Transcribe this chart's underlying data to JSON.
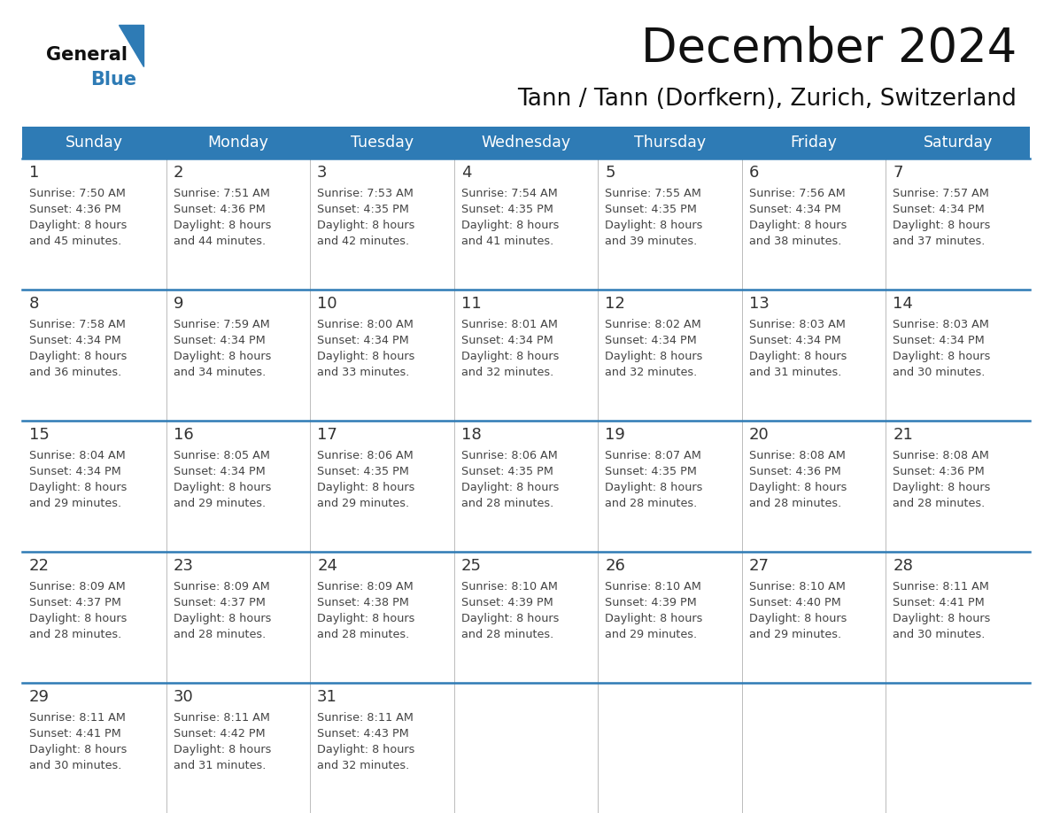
{
  "title": "December 2024",
  "subtitle": "Tann / Tann (Dorfkern), Zurich, Switzerland",
  "header_color": "#2E7BB5",
  "header_text_color": "#FFFFFF",
  "days_of_week": [
    "Sunday",
    "Monday",
    "Tuesday",
    "Wednesday",
    "Thursday",
    "Friday",
    "Saturday"
  ],
  "cell_bg_color": "#FFFFFF",
  "cell_border_color": "#CCCCCC",
  "row_divider_color": "#2E7BB5",
  "day_num_color": "#333333",
  "info_text_color": "#444444",
  "calendar_data": [
    [
      {
        "day": 1,
        "sunrise": "7:50 AM",
        "sunset": "4:36 PM",
        "daylight": "8 hours and 45 minutes"
      },
      {
        "day": 2,
        "sunrise": "7:51 AM",
        "sunset": "4:36 PM",
        "daylight": "8 hours and 44 minutes"
      },
      {
        "day": 3,
        "sunrise": "7:53 AM",
        "sunset": "4:35 PM",
        "daylight": "8 hours and 42 minutes"
      },
      {
        "day": 4,
        "sunrise": "7:54 AM",
        "sunset": "4:35 PM",
        "daylight": "8 hours and 41 minutes"
      },
      {
        "day": 5,
        "sunrise": "7:55 AM",
        "sunset": "4:35 PM",
        "daylight": "8 hours and 39 minutes"
      },
      {
        "day": 6,
        "sunrise": "7:56 AM",
        "sunset": "4:34 PM",
        "daylight": "8 hours and 38 minutes"
      },
      {
        "day": 7,
        "sunrise": "7:57 AM",
        "sunset": "4:34 PM",
        "daylight": "8 hours and 37 minutes"
      }
    ],
    [
      {
        "day": 8,
        "sunrise": "7:58 AM",
        "sunset": "4:34 PM",
        "daylight": "8 hours and 36 minutes"
      },
      {
        "day": 9,
        "sunrise": "7:59 AM",
        "sunset": "4:34 PM",
        "daylight": "8 hours and 34 minutes"
      },
      {
        "day": 10,
        "sunrise": "8:00 AM",
        "sunset": "4:34 PM",
        "daylight": "8 hours and 33 minutes"
      },
      {
        "day": 11,
        "sunrise": "8:01 AM",
        "sunset": "4:34 PM",
        "daylight": "8 hours and 32 minutes"
      },
      {
        "day": 12,
        "sunrise": "8:02 AM",
        "sunset": "4:34 PM",
        "daylight": "8 hours and 32 minutes"
      },
      {
        "day": 13,
        "sunrise": "8:03 AM",
        "sunset": "4:34 PM",
        "daylight": "8 hours and 31 minutes"
      },
      {
        "day": 14,
        "sunrise": "8:03 AM",
        "sunset": "4:34 PM",
        "daylight": "8 hours and 30 minutes"
      }
    ],
    [
      {
        "day": 15,
        "sunrise": "8:04 AM",
        "sunset": "4:34 PM",
        "daylight": "8 hours and 29 minutes"
      },
      {
        "day": 16,
        "sunrise": "8:05 AM",
        "sunset": "4:34 PM",
        "daylight": "8 hours and 29 minutes"
      },
      {
        "day": 17,
        "sunrise": "8:06 AM",
        "sunset": "4:35 PM",
        "daylight": "8 hours and 29 minutes"
      },
      {
        "day": 18,
        "sunrise": "8:06 AM",
        "sunset": "4:35 PM",
        "daylight": "8 hours and 28 minutes"
      },
      {
        "day": 19,
        "sunrise": "8:07 AM",
        "sunset": "4:35 PM",
        "daylight": "8 hours and 28 minutes"
      },
      {
        "day": 20,
        "sunrise": "8:08 AM",
        "sunset": "4:36 PM",
        "daylight": "8 hours and 28 minutes"
      },
      {
        "day": 21,
        "sunrise": "8:08 AM",
        "sunset": "4:36 PM",
        "daylight": "8 hours and 28 minutes"
      }
    ],
    [
      {
        "day": 22,
        "sunrise": "8:09 AM",
        "sunset": "4:37 PM",
        "daylight": "8 hours and 28 minutes"
      },
      {
        "day": 23,
        "sunrise": "8:09 AM",
        "sunset": "4:37 PM",
        "daylight": "8 hours and 28 minutes"
      },
      {
        "day": 24,
        "sunrise": "8:09 AM",
        "sunset": "4:38 PM",
        "daylight": "8 hours and 28 minutes"
      },
      {
        "day": 25,
        "sunrise": "8:10 AM",
        "sunset": "4:39 PM",
        "daylight": "8 hours and 28 minutes"
      },
      {
        "day": 26,
        "sunrise": "8:10 AM",
        "sunset": "4:39 PM",
        "daylight": "8 hours and 29 minutes"
      },
      {
        "day": 27,
        "sunrise": "8:10 AM",
        "sunset": "4:40 PM",
        "daylight": "8 hours and 29 minutes"
      },
      {
        "day": 28,
        "sunrise": "8:11 AM",
        "sunset": "4:41 PM",
        "daylight": "8 hours and 30 minutes"
      }
    ],
    [
      {
        "day": 29,
        "sunrise": "8:11 AM",
        "sunset": "4:41 PM",
        "daylight": "8 hours and 30 minutes"
      },
      {
        "day": 30,
        "sunrise": "8:11 AM",
        "sunset": "4:42 PM",
        "daylight": "8 hours and 31 minutes"
      },
      {
        "day": 31,
        "sunrise": "8:11 AM",
        "sunset": "4:43 PM",
        "daylight": "8 hours and 32 minutes"
      },
      null,
      null,
      null,
      null
    ]
  ],
  "logo_text_general": "General",
  "logo_text_blue": "Blue",
  "logo_triangle_color": "#2E7BB5",
  "fig_width": 11.88,
  "fig_height": 9.18,
  "dpi": 100
}
